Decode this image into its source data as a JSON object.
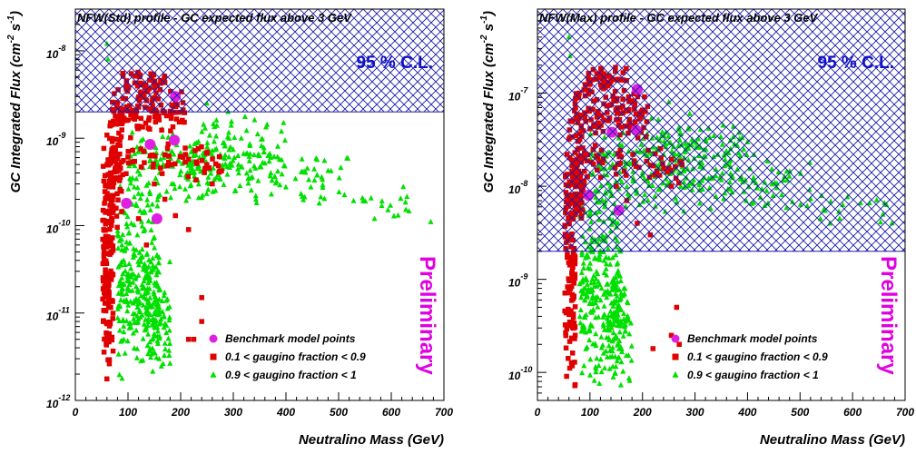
{
  "chart_data": [
    {
      "type": "scatter",
      "title": "NFW(Std) profile - GC expected flux above 3 GeV",
      "xlabel": "Neutralino Mass (GeV)",
      "ylabel_main": "GC Integrated Flux (cm",
      "ylabel_sup1": "-2",
      "ylabel_mid": " s",
      "ylabel_sup2": "-1",
      "ylabel_end": ")",
      "x_scale": "linear",
      "y_scale": "log",
      "xlim": [
        0,
        700
      ],
      "ylim": [
        1e-12,
        3e-08
      ],
      "x_ticks": [
        0,
        100,
        200,
        300,
        400,
        500,
        600,
        700
      ],
      "x_tick_labels": [
        "0",
        "100",
        "200",
        "300",
        "400",
        "500",
        "600",
        "700"
      ],
      "y_ticks": [
        {
          "value": 1e-12,
          "base": "10",
          "exp": "-12"
        },
        {
          "value": 1e-11,
          "base": "10",
          "exp": "-11"
        },
        {
          "value": 1e-10,
          "base": "10",
          "exp": "-10"
        },
        {
          "value": 1e-09,
          "base": "10",
          "exp": "-9"
        },
        {
          "value": 1e-08,
          "base": "10",
          "exp": "-8"
        }
      ],
      "excluded_region": {
        "label": "95 % C.L.",
        "y_from": 2e-09,
        "y_to": 3e-08
      },
      "annotation": "Preliminary",
      "legend": [
        {
          "label": "Benchmark model points",
          "marker": "circle",
          "color": "#e020e0"
        },
        {
          "label": "0.1 <  gaugino fraction < 0.9",
          "marker": "square",
          "color": "#e00000"
        },
        {
          "label": "0.9 <  gaugino fraction < 1",
          "marker": "triangle",
          "color": "#00e000"
        }
      ],
      "series": [
        {
          "name": "0.1 <  gaugino fraction < 0.9",
          "marker": "square",
          "color": "#e00000",
          "regions": [
            {
              "x": [
                52,
                72
              ],
              "y": [
                1.5e-12,
                1e-09
              ],
              "n": 140
            },
            {
              "x": [
                60,
                90
              ],
              "y": [
                8e-11,
                3e-09
              ],
              "n": 90
            },
            {
              "x": [
                70,
                210
              ],
              "y": [
                1e-09,
                4e-09
              ],
              "n": 110
            },
            {
              "x": [
                90,
                170
              ],
              "y": [
                3e-09,
                6e-09
              ],
              "n": 45
            },
            {
              "x": [
                90,
                280
              ],
              "y": [
                3e-10,
                1e-09
              ],
              "n": 55
            }
          ],
          "points": [
            {
              "x": 150,
              "y": 3e-10
            },
            {
              "x": 170,
              "y": 2e-10
            },
            {
              "x": 190,
              "y": 1.3e-10
            },
            {
              "x": 215,
              "y": 9e-11
            },
            {
              "x": 240,
              "y": 1.5e-11
            },
            {
              "x": 240,
              "y": 8e-12
            },
            {
              "x": 215,
              "y": 5e-12
            },
            {
              "x": 225,
              "y": 5e-12
            },
            {
              "x": 260,
              "y": 3e-10
            },
            {
              "x": 120,
              "y": 1.2e-10
            },
            {
              "x": 135,
              "y": 6e-11
            }
          ]
        },
        {
          "name": "0.9 <  gaugino fraction < 1",
          "marker": "triangle",
          "color": "#00e000",
          "regions": [
            {
              "x": [
                80,
                160
              ],
              "y": [
                1.5e-12,
                3e-10
              ],
              "n": 260
            },
            {
              "x": [
                130,
                180
              ],
              "y": [
                2e-12,
                4e-11
              ],
              "n": 90
            },
            {
              "x": [
                100,
                300
              ],
              "y": [
                1.5e-10,
                1.5e-09
              ],
              "n": 170
            },
            {
              "x": [
                200,
                400
              ],
              "y": [
                3e-10,
                2e-09
              ],
              "n": 90
            },
            {
              "x": [
                300,
                520
              ],
              "y": [
                1.5e-10,
                8e-10
              ],
              "n": 70
            },
            {
              "x": [
                520,
                680
              ],
              "y": [
                1e-10,
                3e-10
              ],
              "n": 18
            }
          ],
          "points": [
            {
              "x": 60,
              "y": 1.2e-08
            },
            {
              "x": 62,
              "y": 8e-09
            },
            {
              "x": 250,
              "y": 2.5e-09
            },
            {
              "x": 290,
              "y": 2e-09
            },
            {
              "x": 675,
              "y": 1.1e-10
            }
          ]
        },
        {
          "name": "Benchmark model points",
          "marker": "circle",
          "color": "#e020e0",
          "points": [
            {
              "x": 97,
              "y": 1.8e-10
            },
            {
              "x": 155,
              "y": 1.2e-10
            },
            {
              "x": 142,
              "y": 8.5e-10
            },
            {
              "x": 188,
              "y": 9.5e-10
            },
            {
              "x": 190,
              "y": 3e-09
            }
          ]
        }
      ]
    },
    {
      "type": "scatter",
      "title": "NFW(Max)  profile - GC expected flux above 3 GeV",
      "xlabel": "Neutralino Mass (GeV)",
      "ylabel_main": "GC Integrated Flux (cm",
      "ylabel_sup1": "-2",
      "ylabel_mid": " s",
      "ylabel_sup2": "-1",
      "ylabel_end": ")",
      "x_scale": "linear",
      "y_scale": "log",
      "xlim": [
        0,
        700
      ],
      "ylim": [
        5e-11,
        8e-07
      ],
      "x_ticks": [
        0,
        100,
        200,
        300,
        400,
        500,
        600,
        700
      ],
      "x_tick_labels": [
        "0",
        "100",
        "200",
        "300",
        "400",
        "500",
        "600",
        "700"
      ],
      "y_ticks": [
        {
          "value": 1e-10,
          "base": "10",
          "exp": "-10"
        },
        {
          "value": 1e-09,
          "base": "10",
          "exp": "-9"
        },
        {
          "value": 1e-08,
          "base": "10",
          "exp": "-8"
        },
        {
          "value": 1e-07,
          "base": "10",
          "exp": "-7"
        }
      ],
      "excluded_region": {
        "label": "95 % C.L.",
        "y_from": 2e-09,
        "y_to": 8e-07
      },
      "annotation": "Preliminary",
      "legend": [
        {
          "label": "Benchmark model points",
          "marker": "circle",
          "color": "#e020e0"
        },
        {
          "label": "0.1 <  gaugino fraction < 0.9",
          "marker": "square",
          "color": "#e00000"
        },
        {
          "label": "0.9 <  gaugino fraction < 1",
          "marker": "triangle",
          "color": "#00e000"
        }
      ],
      "series": [
        {
          "name": "0.1 <  gaugino fraction < 0.9",
          "marker": "square",
          "color": "#e00000",
          "regions": [
            {
              "x": [
                52,
                72
              ],
              "y": [
                6e-11,
                3e-08
              ],
              "n": 140
            },
            {
              "x": [
                60,
                90
              ],
              "y": [
                3e-09,
                6e-08
              ],
              "n": 90
            },
            {
              "x": [
                70,
                210
              ],
              "y": [
                3e-08,
                1.2e-07
              ],
              "n": 110
            },
            {
              "x": [
                90,
                170
              ],
              "y": [
                1e-07,
                2e-07
              ],
              "n": 45
            },
            {
              "x": [
                90,
                280
              ],
              "y": [
                1e-08,
                3e-08
              ],
              "n": 55
            }
          ],
          "points": [
            {
              "x": 150,
              "y": 1e-08
            },
            {
              "x": 170,
              "y": 7e-09
            },
            {
              "x": 190,
              "y": 4e-09
            },
            {
              "x": 215,
              "y": 3e-09
            },
            {
              "x": 265,
              "y": 5e-10
            },
            {
              "x": 255,
              "y": 2.5e-10
            },
            {
              "x": 220,
              "y": 1.8e-10
            },
            {
              "x": 270,
              "y": 2e-10
            },
            {
              "x": 255,
              "y": 1e-08
            }
          ]
        },
        {
          "name": "0.9 <  gaugino fraction < 1",
          "marker": "triangle",
          "color": "#00e000",
          "regions": [
            {
              "x": [
                80,
                160
              ],
              "y": [
                6e-11,
                1e-08
              ],
              "n": 260
            },
            {
              "x": [
                130,
                180
              ],
              "y": [
                8e-11,
                1.5e-09
              ],
              "n": 90
            },
            {
              "x": [
                100,
                300
              ],
              "y": [
                5e-09,
                5e-08
              ],
              "n": 170
            },
            {
              "x": [
                200,
                400
              ],
              "y": [
                1e-08,
                6e-08
              ],
              "n": 90
            },
            {
              "x": [
                300,
                520
              ],
              "y": [
                5e-09,
                2.5e-08
              ],
              "n": 70
            },
            {
              "x": [
                520,
                680
              ],
              "y": [
                3.5e-09,
                1e-08
              ],
              "n": 18
            }
          ],
          "points": [
            {
              "x": 60,
              "y": 4e-07
            },
            {
              "x": 62,
              "y": 2.5e-07
            },
            {
              "x": 250,
              "y": 8e-08
            },
            {
              "x": 290,
              "y": 6e-08
            },
            {
              "x": 675,
              "y": 4e-09
            }
          ]
        },
        {
          "name": "Benchmark model points",
          "marker": "circle",
          "color": "#e020e0",
          "points": [
            {
              "x": 97,
              "y": 8e-09
            },
            {
              "x": 155,
              "y": 5.5e-09
            },
            {
              "x": 142,
              "y": 3.8e-08
            },
            {
              "x": 188,
              "y": 4e-08
            },
            {
              "x": 190,
              "y": 1.1e-07
            }
          ]
        }
      ]
    }
  ]
}
